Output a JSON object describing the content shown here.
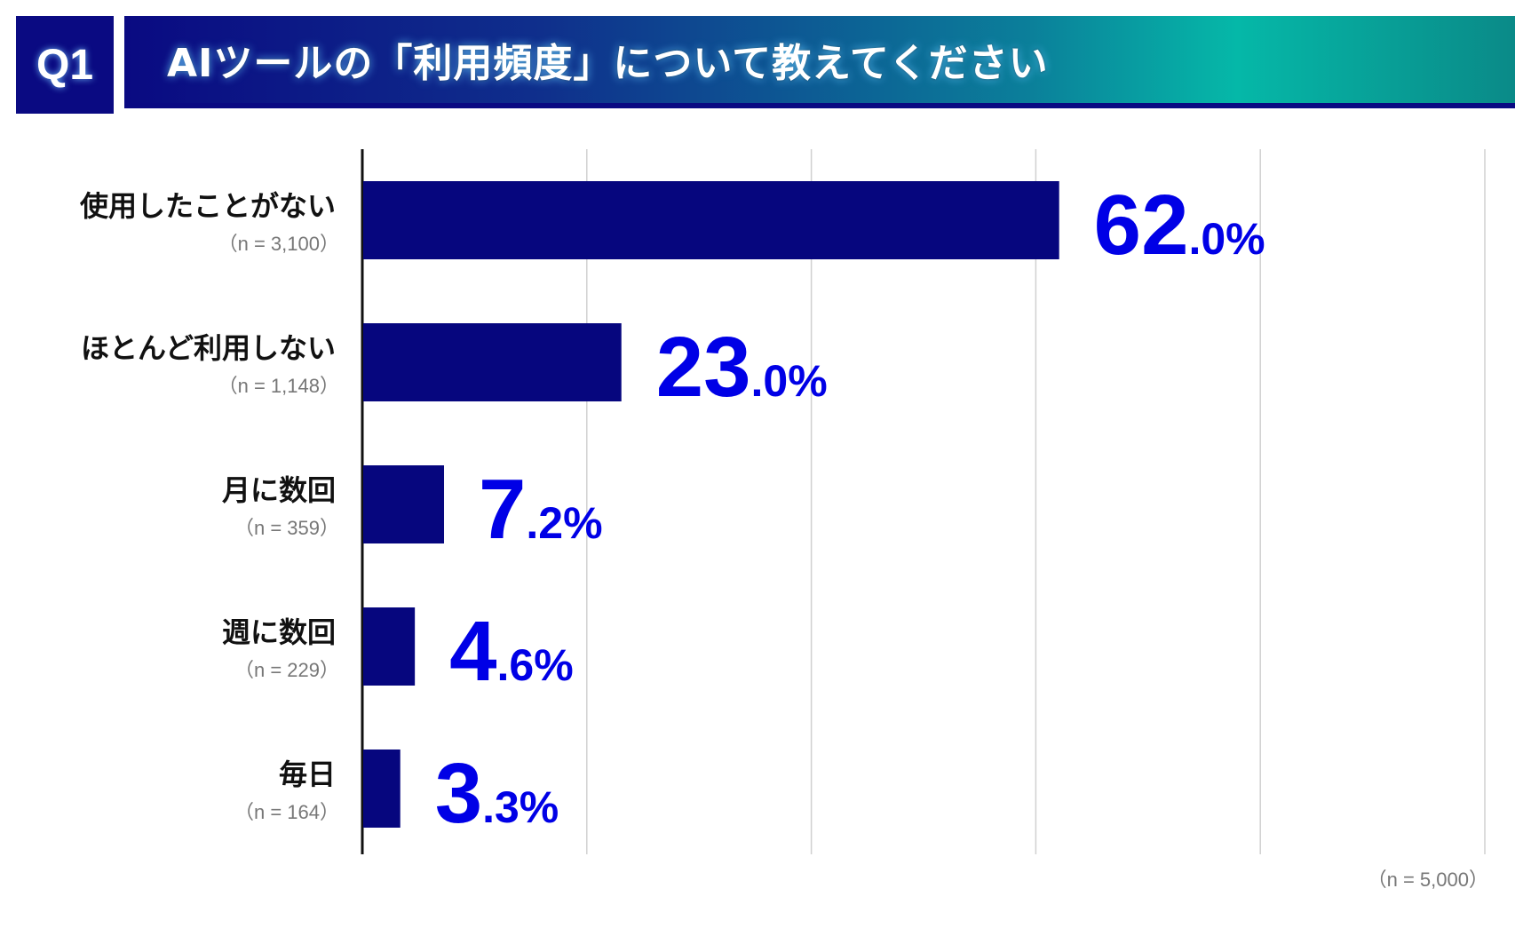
{
  "header": {
    "question_number": "Q1",
    "title": "AIツールの「利用頻度」について教えてください"
  },
  "colors": {
    "bar": "#06067e",
    "value_text": "#0000e6",
    "header_dark": "#0a0a82",
    "header_teal": "#05b8a8"
  },
  "chart_data": {
    "type": "bar",
    "orientation": "horizontal",
    "categories": [
      "使用したことがない",
      "ほとんど利用しない",
      "月に数回",
      "週に数回",
      "毎日"
    ],
    "n_labels": [
      "（n = 3,100）",
      "（n = 1,148）",
      "（n = 359）",
      "（n = 229）",
      "（n = 164）"
    ],
    "values": [
      62.0,
      23.0,
      7.2,
      4.6,
      3.3
    ],
    "value_labels": [
      {
        "int": "62",
        "dec": ".0%"
      },
      {
        "int": "23",
        "dec": ".0%"
      },
      {
        "int": "7",
        "dec": ".2%"
      },
      {
        "int": "4",
        "dec": ".6%"
      },
      {
        "int": "3",
        "dec": ".3%"
      }
    ],
    "xlim": [
      0,
      100
    ],
    "grid": true,
    "total_n": "（n = 5,000）"
  }
}
